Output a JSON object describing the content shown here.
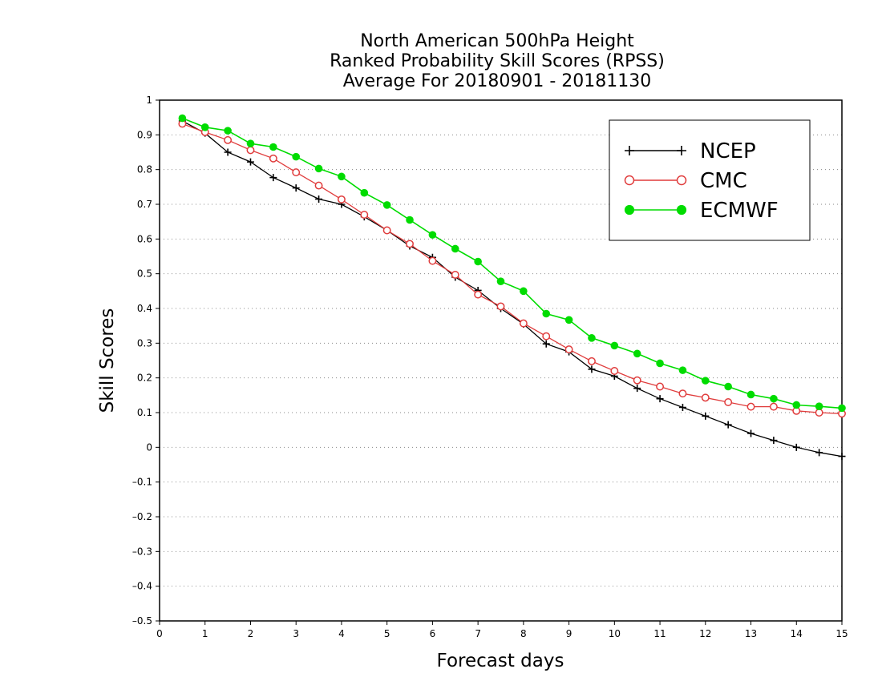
{
  "chart_data": {
    "type": "line",
    "title_lines": [
      "North American 500hPa Height",
      "Ranked Probability Skill Scores (RPSS)",
      "Average For 20180901 - 20181130"
    ],
    "xlabel": "Forecast days",
    "ylabel": "Skill Scores",
    "xlim": [
      0,
      15
    ],
    "ylim": [
      -0.5,
      1
    ],
    "xticks": [
      0,
      1,
      2,
      3,
      4,
      5,
      6,
      7,
      8,
      9,
      10,
      11,
      12,
      13,
      14,
      15
    ],
    "yticks": [
      -0.5,
      -0.4,
      -0.3,
      -0.2,
      -0.1,
      0,
      0.1,
      0.2,
      0.3,
      0.4,
      0.5,
      0.6,
      0.7,
      0.8,
      0.9,
      1
    ],
    "ytick_labels": [
      "–0.5",
      "–0.4",
      "–0.3",
      "–0.2",
      "–0.1",
      "0",
      "0.1",
      "0.2",
      "0.3",
      "0.4",
      "0.5",
      "0.6",
      "0.7",
      "0.8",
      "0.9",
      "1"
    ],
    "grid": "horizontal dotted",
    "legend_position": "top-right",
    "x": [
      0.5,
      1,
      1.5,
      2,
      2.5,
      3,
      3.5,
      4,
      4.5,
      5,
      5.5,
      6,
      6.5,
      7,
      7.5,
      8,
      8.5,
      9,
      9.5,
      10,
      10.5,
      11,
      11.5,
      12,
      12.5,
      13,
      13.5,
      14,
      14.5,
      15
    ],
    "series": [
      {
        "name": "NCEP",
        "color": "#000000",
        "marker": "plus",
        "values": [
          0.94,
          0.905,
          0.85,
          0.822,
          0.777,
          0.747,
          0.715,
          0.7,
          0.664,
          0.625,
          0.58,
          0.547,
          0.49,
          0.452,
          0.4,
          0.355,
          0.298,
          0.275,
          0.225,
          0.205,
          0.17,
          0.14,
          0.115,
          0.09,
          0.065,
          0.04,
          0.02,
          0.0,
          -0.015,
          -0.026
        ]
      },
      {
        "name": "CMC",
        "color": "#e03c3c",
        "marker": "open-circle",
        "values": [
          0.932,
          0.908,
          0.885,
          0.856,
          0.832,
          0.792,
          0.754,
          0.714,
          0.67,
          0.625,
          0.586,
          0.537,
          0.497,
          0.44,
          0.406,
          0.357,
          0.32,
          0.282,
          0.248,
          0.22,
          0.193,
          0.175,
          0.155,
          0.143,
          0.13,
          0.117,
          0.117,
          0.105,
          0.1,
          0.097
        ]
      },
      {
        "name": "ECMWF",
        "color": "#00dc00",
        "marker": "filled-circle",
        "values": [
          0.948,
          0.922,
          0.912,
          0.875,
          0.865,
          0.837,
          0.803,
          0.78,
          0.733,
          0.698,
          0.655,
          0.612,
          0.572,
          0.535,
          0.478,
          0.45,
          0.385,
          0.367,
          0.315,
          0.293,
          0.27,
          0.242,
          0.222,
          0.192,
          0.175,
          0.152,
          0.14,
          0.122,
          0.118,
          0.113
        ]
      }
    ]
  }
}
